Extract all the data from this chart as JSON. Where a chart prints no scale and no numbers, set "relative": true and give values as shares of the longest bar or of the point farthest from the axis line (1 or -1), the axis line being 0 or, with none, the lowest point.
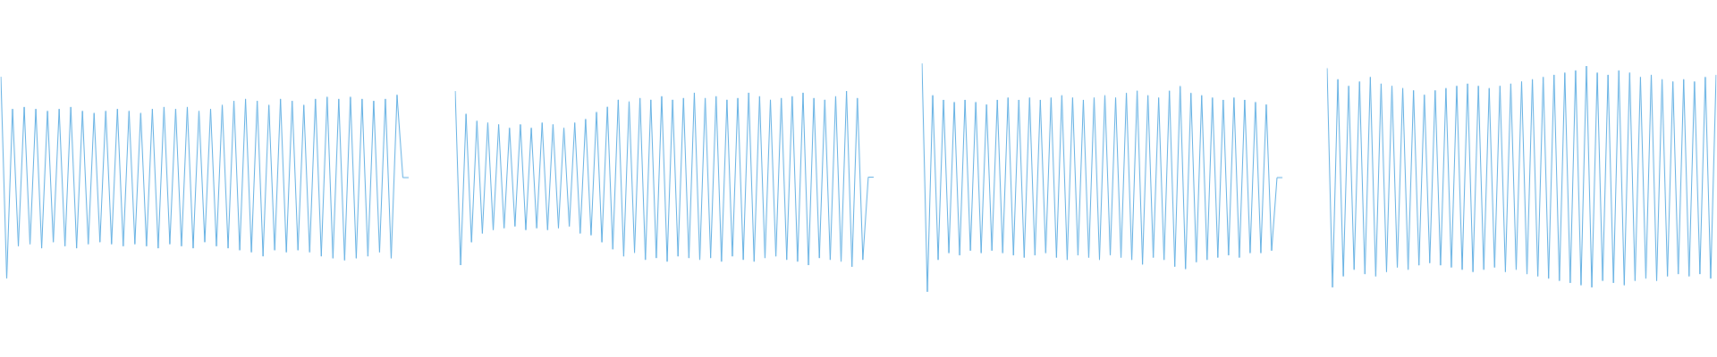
{
  "chart_data": [
    {
      "type": "line",
      "relative": true,
      "marker": "none",
      "grid": false,
      "legend": false,
      "categories": [
        null,
        null,
        null,
        null,
        null,
        null,
        null,
        null,
        null,
        null,
        null,
        null,
        null,
        null,
        null,
        null,
        null,
        null,
        null,
        null,
        null,
        null,
        null,
        null,
        null,
        null,
        null,
        null,
        null,
        null,
        null,
        null,
        null,
        null,
        null,
        null,
        null,
        null,
        null,
        null,
        null,
        null,
        null,
        null,
        null,
        null,
        null,
        null,
        null,
        null,
        null,
        null,
        null,
        null,
        null,
        null,
        null,
        null,
        null,
        null,
        null,
        null,
        null,
        null,
        null,
        null,
        null,
        null,
        null,
        null,
        null
      ],
      "series": [
        {
          "color": "#5dade2",
          "values": [
            1,
            0,
            0.84,
            0.16,
            0.85,
            0.17,
            0.84,
            0.15,
            0.83,
            0.18,
            0.84,
            0.16,
            0.85,
            0.15,
            0.83,
            0.17,
            0.82,
            0.18,
            0.83,
            0.17,
            0.84,
            0.16,
            0.83,
            0.17,
            0.82,
            0.16,
            0.84,
            0.15,
            0.85,
            0.17,
            0.84,
            0.16,
            0.85,
            0.15,
            0.83,
            0.18,
            0.84,
            0.16,
            0.86,
            0.15,
            0.88,
            0.14,
            0.89,
            0.13,
            0.88,
            0.11,
            0.86,
            0.14,
            0.89,
            0.13,
            0.88,
            0.14,
            0.86,
            0.13,
            0.89,
            0.11,
            0.9,
            0.1,
            0.89,
            0.09,
            0.9,
            0.1,
            0.89,
            0.11,
            0.88,
            0.13,
            0.89,
            0.1,
            0.91,
            0.5,
            0.5
          ]
        }
      ]
    },
    {
      "type": "line",
      "relative": true,
      "marker": "none",
      "grid": false,
      "legend": false,
      "categories": [
        null,
        null,
        null,
        null,
        null,
        null,
        null,
        null,
        null,
        null,
        null,
        null,
        null,
        null,
        null,
        null,
        null,
        null,
        null,
        null,
        null,
        null,
        null,
        null,
        null,
        null,
        null,
        null,
        null,
        null,
        null,
        null,
        null,
        null,
        null,
        null,
        null,
        null,
        null,
        null,
        null,
        null,
        null,
        null,
        null,
        null,
        null,
        null,
        null,
        null,
        null,
        null,
        null,
        null,
        null,
        null,
        null,
        null,
        null,
        null,
        null,
        null,
        null,
        null,
        null,
        null,
        null,
        null,
        null,
        null,
        null,
        null,
        null,
        null,
        null,
        null,
        null,
        null
      ],
      "series": [
        {
          "color": "#5dade2",
          "values": [
            1,
            0.01,
            0.87,
            0.14,
            0.83,
            0.19,
            0.82,
            0.21,
            0.81,
            0.22,
            0.79,
            0.23,
            0.81,
            0.21,
            0.79,
            0.22,
            0.82,
            0.21,
            0.81,
            0.22,
            0.79,
            0.23,
            0.82,
            0.19,
            0.84,
            0.18,
            0.88,
            0.14,
            0.91,
            0.1,
            0.95,
            0.06,
            0.94,
            0.08,
            0.96,
            0.04,
            0.95,
            0.05,
            0.97,
            0.03,
            0.95,
            0.06,
            0.96,
            0.05,
            0.99,
            0.04,
            0.96,
            0.05,
            0.97,
            0.03,
            0.95,
            0.06,
            0.96,
            0.04,
            0.99,
            0.03,
            0.97,
            0.05,
            0.95,
            0.06,
            0.96,
            0.04,
            0.97,
            0.03,
            0.99,
            0.01,
            0.96,
            0.05,
            0.95,
            0.04,
            0.97,
            0.03,
            1,
            0,
            0.96,
            0.04,
            0.51,
            0.51
          ]
        }
      ]
    },
    {
      "type": "line",
      "relative": true,
      "marker": "none",
      "grid": false,
      "legend": false,
      "categories": [
        null,
        null,
        null,
        null,
        null,
        null,
        null,
        null,
        null,
        null,
        null,
        null,
        null,
        null,
        null,
        null,
        null,
        null,
        null,
        null,
        null,
        null,
        null,
        null,
        null,
        null,
        null,
        null,
        null,
        null,
        null,
        null,
        null,
        null,
        null,
        null,
        null,
        null,
        null,
        null,
        null,
        null,
        null,
        null,
        null,
        null,
        null,
        null,
        null,
        null,
        null,
        null,
        null,
        null,
        null,
        null,
        null,
        null,
        null,
        null,
        null,
        null,
        null,
        null,
        null,
        null,
        null,
        null
      ],
      "series": [
        {
          "color": "#5dade2",
          "values": [
            1,
            0,
            0.86,
            0.14,
            0.84,
            0.17,
            0.83,
            0.16,
            0.84,
            0.18,
            0.83,
            0.17,
            0.82,
            0.18,
            0.84,
            0.17,
            0.85,
            0.16,
            0.84,
            0.15,
            0.85,
            0.16,
            0.84,
            0.17,
            0.85,
            0.15,
            0.86,
            0.14,
            0.85,
            0.16,
            0.84,
            0.15,
            0.85,
            0.14,
            0.86,
            0.16,
            0.85,
            0.15,
            0.87,
            0.14,
            0.88,
            0.12,
            0.86,
            0.15,
            0.85,
            0.14,
            0.88,
            0.11,
            0.9,
            0.1,
            0.87,
            0.13,
            0.86,
            0.14,
            0.85,
            0.15,
            0.84,
            0.16,
            0.85,
            0.15,
            0.84,
            0.17,
            0.83,
            0.17,
            0.82,
            0.18,
            0.5,
            0.5
          ]
        }
      ]
    },
    {
      "type": "line",
      "relative": true,
      "marker": "none",
      "grid": false,
      "legend": false,
      "categories": [
        null,
        null,
        null,
        null,
        null,
        null,
        null,
        null,
        null,
        null,
        null,
        null,
        null,
        null,
        null,
        null,
        null,
        null,
        null,
        null,
        null,
        null,
        null,
        null,
        null,
        null,
        null,
        null,
        null,
        null,
        null,
        null,
        null,
        null,
        null,
        null,
        null,
        null,
        null,
        null,
        null,
        null,
        null,
        null,
        null,
        null,
        null,
        null,
        null,
        null,
        null,
        null,
        null,
        null,
        null,
        null,
        null,
        null,
        null,
        null,
        null,
        null,
        null,
        null,
        null,
        null,
        null,
        null,
        null,
        null,
        null,
        null,
        null
      ],
      "series": [
        {
          "color": "#5dade2",
          "values": [
            0.99,
            0,
            0.94,
            0.05,
            0.91,
            0.08,
            0.93,
            0.06,
            0.95,
            0.05,
            0.92,
            0.07,
            0.91,
            0.09,
            0.9,
            0.08,
            0.89,
            0.1,
            0.87,
            0.11,
            0.89,
            0.1,
            0.9,
            0.09,
            0.91,
            0.08,
            0.92,
            0.07,
            0.91,
            0.08,
            0.9,
            0.09,
            0.91,
            0.07,
            0.92,
            0.08,
            0.93,
            0.06,
            0.94,
            0.05,
            0.95,
            0.04,
            0.96,
            0.03,
            0.97,
            0.02,
            0.98,
            0.01,
            1,
            0,
            0.97,
            0.03,
            0.96,
            0.02,
            0.98,
            0.01,
            0.97,
            0.03,
            0.95,
            0.04,
            0.96,
            0.03,
            0.94,
            0.05,
            0.93,
            0.06,
            0.94,
            0.05,
            0.93,
            0.06,
            0.95,
            0.04,
            0.96
          ]
        }
      ]
    }
  ]
}
